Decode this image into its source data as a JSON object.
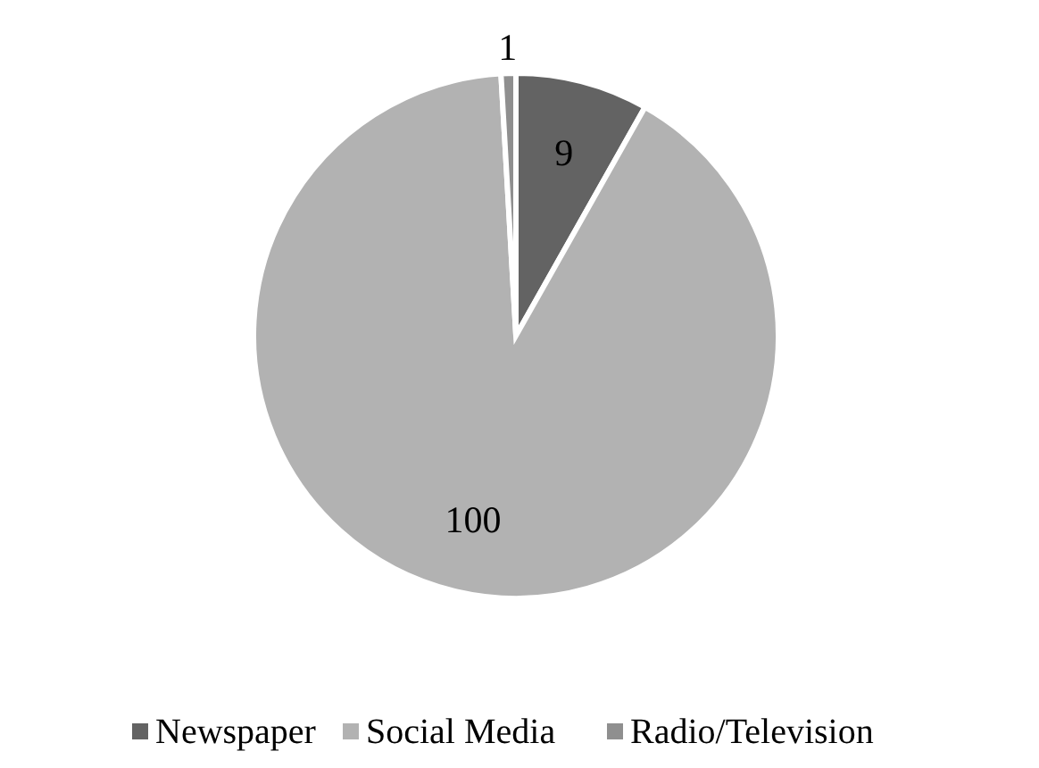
{
  "chart_data": {
    "type": "pie",
    "categories": [
      "Newspaper",
      "Social Media",
      "Radio/Television"
    ],
    "values": [
      9,
      100,
      1
    ],
    "colors": [
      "#636363",
      "#b2b2b2",
      "#8f8f8f"
    ],
    "data_labels": true,
    "legend": "bottom"
  }
}
